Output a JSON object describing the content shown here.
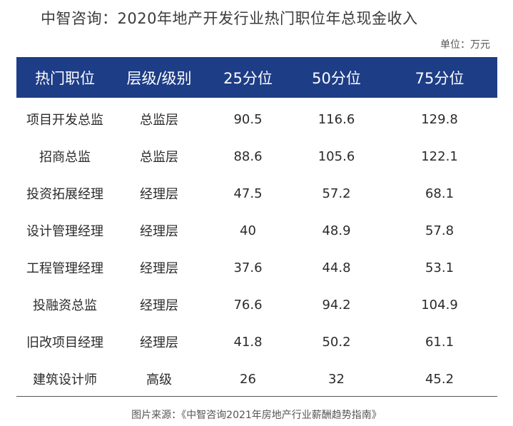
{
  "title": "中智咨询：2020年地产开发行业热门职位年总现金收入",
  "unit": "单位：万元",
  "table": {
    "headers": [
      "热门职位",
      "层级/级别",
      "25分位",
      "50分位",
      "75分位"
    ],
    "rows": [
      [
        "项目开发总监",
        "总监层",
        "90.5",
        "116.6",
        "129.8"
      ],
      [
        "招商总监",
        "总监层",
        "88.6",
        "105.6",
        "122.1"
      ],
      [
        "投资拓展经理",
        "经理层",
        "47.5",
        "57.2",
        "68.1"
      ],
      [
        "设计管理经理",
        "经理层",
        "40",
        "48.9",
        "57.8"
      ],
      [
        "工程管理经理",
        "经理层",
        "37.6",
        "44.8",
        "53.1"
      ],
      [
        "投融资总监",
        "经理层",
        "76.6",
        "94.2",
        "104.9"
      ],
      [
        "旧改项目经理",
        "经理层",
        "41.8",
        "50.2",
        "61.1"
      ],
      [
        "建筑设计师",
        "高级",
        "26",
        "32",
        "45.2"
      ]
    ]
  },
  "source": "图片来源：《中智咨询2021年房地产行业薪酬趋势指南》",
  "colors": {
    "header_background": "#1e3d87",
    "header_text": "#ffffff"
  }
}
